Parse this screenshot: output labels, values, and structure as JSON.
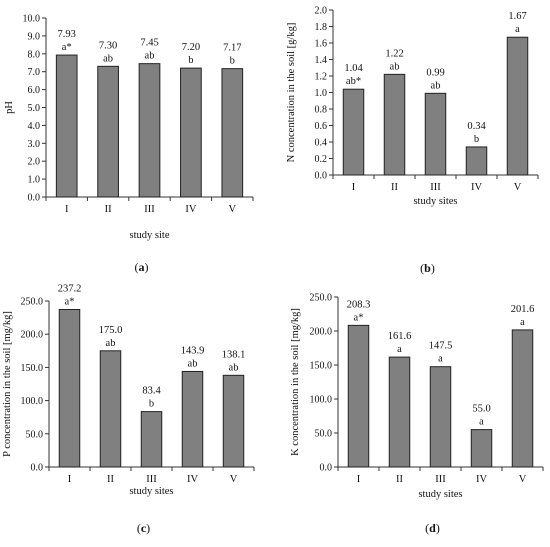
{
  "figure": {
    "panels": [
      "(a)",
      "(b)",
      "(c)",
      "(d)"
    ]
  },
  "chart_data": [
    {
      "type": "bar",
      "panel_label": "(a)",
      "categories": [
        "I",
        "II",
        "III",
        "IV",
        "V"
      ],
      "values": [
        7.93,
        7.3,
        7.45,
        7.2,
        7.17
      ],
      "value_labels": [
        "7.93",
        "7.30",
        "7.45",
        "7.20",
        "7.17"
      ],
      "significance": [
        "a*",
        "ab",
        "ab",
        "b",
        "b"
      ],
      "xlabel": "study site",
      "ylabel": "pH",
      "ylim": [
        0,
        10
      ],
      "yticks": [
        "0.0",
        "1.0",
        "2.0",
        "3.0",
        "4.0",
        "5.0",
        "6.0",
        "7.0",
        "8.0",
        "9.0",
        "10.0"
      ],
      "bar_color": "#808080",
      "grid": false
    },
    {
      "type": "bar",
      "panel_label": "(b)",
      "categories": [
        "I",
        "II",
        "III",
        "IV",
        "V"
      ],
      "values": [
        1.04,
        1.22,
        0.99,
        0.34,
        1.67
      ],
      "value_labels": [
        "1.04",
        "1.22",
        "0.99",
        "0.34",
        "1.67"
      ],
      "significance": [
        "ab*",
        "ab",
        "ab",
        "b",
        "a"
      ],
      "xlabel": "study sites",
      "ylabel": "N concentration in the soil [g/kg]",
      "ylim": [
        0,
        2
      ],
      "yticks": [
        "0.0",
        "0.2",
        "0.4",
        "0.6",
        "0.8",
        "1.0",
        "1.2",
        "1.4",
        "1.6",
        "1.8",
        "2.0"
      ],
      "bar_color": "#808080",
      "grid": false
    },
    {
      "type": "bar",
      "panel_label": "(c)",
      "categories": [
        "I",
        "II",
        "III",
        "IV",
        "V"
      ],
      "values": [
        237.2,
        175.0,
        83.4,
        143.9,
        138.1
      ],
      "value_labels": [
        "237.2",
        "175.0",
        "83.4",
        "143.9",
        "138.1"
      ],
      "significance": [
        "a*",
        "ab",
        "b",
        "ab",
        "ab"
      ],
      "xlabel": "study sites",
      "ylabel": "P concentration in the soil [mg/kg]",
      "ylim": [
        0,
        250
      ],
      "yticks": [
        "0.0",
        "50.0",
        "100.0",
        "150.0",
        "200.0",
        "250.0"
      ],
      "bar_color": "#808080",
      "grid": false
    },
    {
      "type": "bar",
      "panel_label": "(d)",
      "categories": [
        "I",
        "II",
        "III",
        "IV",
        "V"
      ],
      "values": [
        208.3,
        161.6,
        147.5,
        55.0,
        201.6
      ],
      "value_labels": [
        "208.3",
        "161.6",
        "147.5",
        "55.0",
        "201.6"
      ],
      "significance": [
        "a*",
        "a",
        "a",
        "a",
        "a"
      ],
      "xlabel": "study sites",
      "ylabel": "K concentration in the soil [mg/kg]",
      "ylim": [
        0,
        250
      ],
      "yticks": [
        "0.0",
        "50.0",
        "100.0",
        "150.0",
        "200.0",
        "250.0"
      ],
      "bar_color": "#808080",
      "grid": false
    }
  ]
}
